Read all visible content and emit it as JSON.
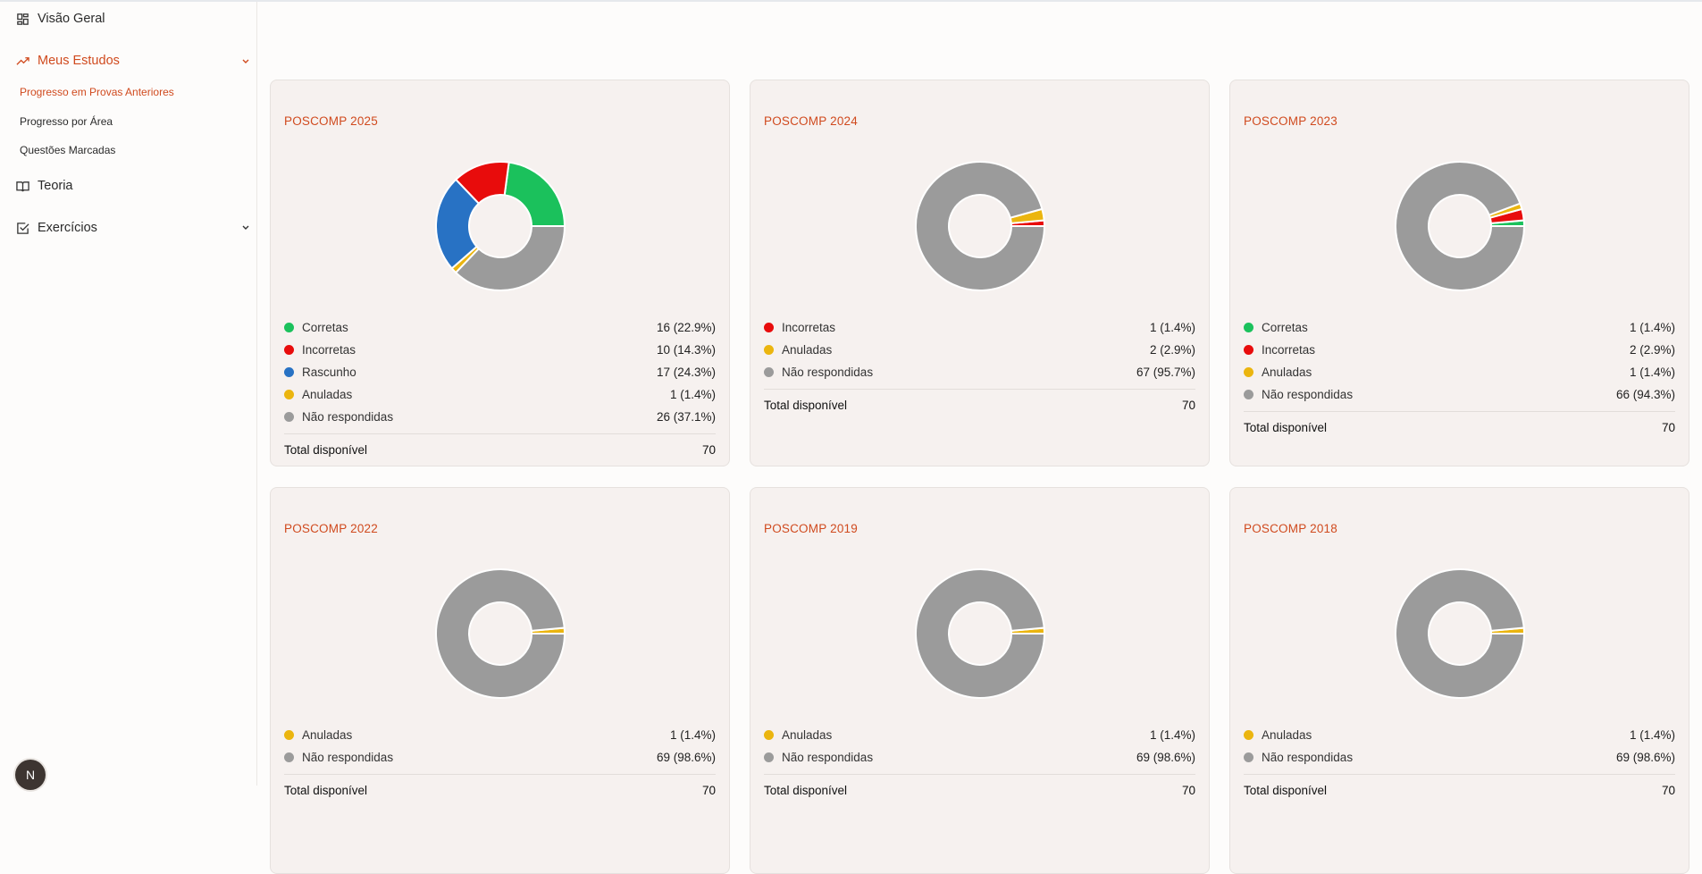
{
  "sidebar": {
    "overview": "Visão Geral",
    "studies": "Meus Estudos",
    "sub": [
      "Progresso em Provas Anteriores",
      "Progresso por Área",
      "Questões Marcadas"
    ],
    "theory": "Teoria",
    "exercises": "Exercícios",
    "avatar": "N"
  },
  "colors": {
    "Corretas": "#1bc15c",
    "Incorretas": "#e80c0c",
    "Rascunho": "#2872c4",
    "Anuladas": "#ebb50f",
    "Não respondidas": "#9b9b9b",
    "accent": "#d04a1e"
  },
  "total_label": "Total disponível",
  "chart_data": [
    {
      "type": "pie",
      "title": "POSCOMP 2025",
      "total": 70,
      "slices": [
        {
          "label": "Corretas",
          "value": 16,
          "text": "16 (22.9%)"
        },
        {
          "label": "Incorretas",
          "value": 10,
          "text": "10 (14.3%)"
        },
        {
          "label": "Rascunho",
          "value": 17,
          "text": "17 (24.3%)"
        },
        {
          "label": "Anuladas",
          "value": 1,
          "text": "1 (1.4%)"
        },
        {
          "label": "Não respondidas",
          "value": 26,
          "text": "26 (37.1%)"
        }
      ]
    },
    {
      "type": "pie",
      "title": "POSCOMP 2024",
      "total": 70,
      "slices": [
        {
          "label": "Incorretas",
          "value": 1,
          "text": "1 (1.4%)"
        },
        {
          "label": "Anuladas",
          "value": 2,
          "text": "2 (2.9%)"
        },
        {
          "label": "Não respondidas",
          "value": 67,
          "text": "67 (95.7%)"
        }
      ]
    },
    {
      "type": "pie",
      "title": "POSCOMP 2023",
      "total": 70,
      "slices": [
        {
          "label": "Corretas",
          "value": 1,
          "text": "1 (1.4%)"
        },
        {
          "label": "Incorretas",
          "value": 2,
          "text": "2 (2.9%)"
        },
        {
          "label": "Anuladas",
          "value": 1,
          "text": "1 (1.4%)"
        },
        {
          "label": "Não respondidas",
          "value": 66,
          "text": "66 (94.3%)"
        }
      ]
    },
    {
      "type": "pie",
      "title": "POSCOMP 2022",
      "total": 70,
      "slices": [
        {
          "label": "Anuladas",
          "value": 1,
          "text": "1 (1.4%)"
        },
        {
          "label": "Não respondidas",
          "value": 69,
          "text": "69 (98.6%)"
        }
      ]
    },
    {
      "type": "pie",
      "title": "POSCOMP 2019",
      "total": 70,
      "slices": [
        {
          "label": "Anuladas",
          "value": 1,
          "text": "1 (1.4%)"
        },
        {
          "label": "Não respondidas",
          "value": 69,
          "text": "69 (98.6%)"
        }
      ]
    },
    {
      "type": "pie",
      "title": "POSCOMP 2018",
      "total": 70,
      "slices": [
        {
          "label": "Anuladas",
          "value": 1,
          "text": "1 (1.4%)"
        },
        {
          "label": "Não respondidas",
          "value": 69,
          "text": "69 (98.6%)"
        }
      ]
    }
  ]
}
